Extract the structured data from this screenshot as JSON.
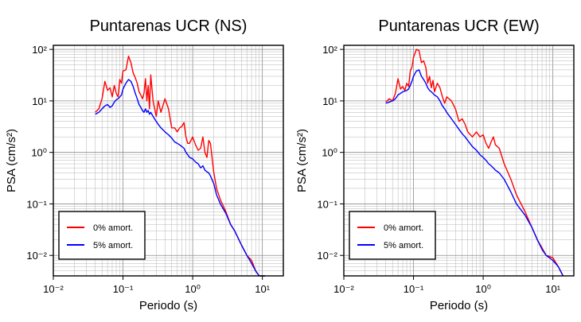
{
  "chart_data": [
    {
      "type": "line",
      "title": "Puntarenas UCR (NS)",
      "xlabel": "Periodo (s)",
      "ylabel": "PSA (cm/s²)",
      "x_scale": "log",
      "y_scale": "log",
      "xlim": [
        0.01,
        20
      ],
      "ylim": [
        0.004,
        120
      ],
      "x_tick_labels": [
        "10⁻²",
        "10⁻¹",
        "10⁰",
        "10¹"
      ],
      "y_tick_labels": [
        "10⁻²",
        "10⁻¹",
        "10⁰",
        "10¹",
        "10²"
      ],
      "grid": true,
      "legend": "bottom-left",
      "series": [
        {
          "name": "0% amort.",
          "color": "#ff0000",
          "x": [
            0.04,
            0.045,
            0.05,
            0.055,
            0.06,
            0.065,
            0.07,
            0.075,
            0.08,
            0.085,
            0.09,
            0.095,
            0.1,
            0.11,
            0.12,
            0.13,
            0.14,
            0.15,
            0.16,
            0.17,
            0.18,
            0.19,
            0.2,
            0.21,
            0.22,
            0.23,
            0.24,
            0.25,
            0.27,
            0.3,
            0.32,
            0.35,
            0.4,
            0.45,
            0.5,
            0.55,
            0.6,
            0.65,
            0.7,
            0.75,
            0.8,
            0.85,
            0.9,
            1.0,
            1.1,
            1.2,
            1.3,
            1.4,
            1.5,
            1.6,
            1.7,
            1.8,
            2.0,
            2.2,
            2.5,
            3.0,
            3.5,
            4.0,
            5.0,
            6.0,
            7.0,
            8.0,
            9.0,
            10.0,
            11.0
          ],
          "y": [
            6.0,
            7.0,
            11.0,
            24.0,
            16.0,
            18.0,
            12.0,
            20.0,
            14.0,
            12.0,
            26.0,
            22.0,
            38.0,
            40.0,
            74.0,
            55.0,
            35.0,
            28.0,
            22.0,
            15.0,
            13.0,
            11.0,
            14.0,
            27.0,
            10.0,
            20.0,
            7.0,
            32.0,
            10.0,
            5.0,
            10.0,
            6.0,
            11.0,
            7.0,
            3.0,
            3.0,
            2.5,
            3.0,
            3.2,
            3.8,
            2.0,
            1.5,
            1.5,
            2.0,
            1.4,
            1.1,
            1.2,
            2.0,
            1.0,
            0.8,
            1.7,
            1.5,
            0.42,
            0.2,
            0.12,
            0.07,
            0.04,
            0.03,
            0.016,
            0.01,
            0.008,
            0.005,
            0.004,
            0.004,
            0.004
          ]
        },
        {
          "name": "5% amort.",
          "color": "#0000ff",
          "x": [
            0.04,
            0.045,
            0.05,
            0.055,
            0.06,
            0.065,
            0.07,
            0.075,
            0.08,
            0.085,
            0.09,
            0.095,
            0.1,
            0.11,
            0.12,
            0.13,
            0.14,
            0.15,
            0.16,
            0.17,
            0.18,
            0.19,
            0.2,
            0.21,
            0.22,
            0.23,
            0.24,
            0.25,
            0.27,
            0.3,
            0.32,
            0.35,
            0.4,
            0.45,
            0.5,
            0.55,
            0.6,
            0.65,
            0.7,
            0.75,
            0.8,
            0.85,
            0.9,
            1.0,
            1.1,
            1.2,
            1.3,
            1.4,
            1.5,
            1.6,
            1.7,
            1.8,
            2.0,
            2.2,
            2.5,
            3.0,
            3.5,
            4.0,
            5.0,
            6.0,
            7.0,
            8.0,
            9.0,
            10.0,
            11.0
          ],
          "y": [
            5.5,
            6.0,
            7.0,
            8.0,
            8.5,
            7.5,
            8.0,
            9.5,
            10.5,
            11.0,
            12.0,
            13.0,
            17.0,
            22.0,
            26.0,
            24.0,
            19.0,
            14.0,
            11.0,
            8.5,
            7.5,
            6.5,
            6.0,
            7.0,
            6.0,
            6.5,
            5.5,
            6.0,
            5.0,
            4.0,
            3.5,
            3.0,
            2.5,
            2.2,
            1.9,
            1.6,
            1.5,
            1.4,
            1.3,
            1.2,
            1.0,
            0.9,
            0.8,
            0.75,
            0.65,
            0.6,
            0.5,
            0.55,
            0.45,
            0.42,
            0.4,
            0.35,
            0.25,
            0.15,
            0.1,
            0.065,
            0.04,
            0.03,
            0.016,
            0.01,
            0.007,
            0.005,
            0.004,
            0.004,
            0.004
          ]
        }
      ]
    },
    {
      "type": "line",
      "title": "Puntarenas UCR (EW)",
      "xlabel": "Periodo (s)",
      "ylabel": "PSA (cm/s²)",
      "x_scale": "log",
      "y_scale": "log",
      "xlim": [
        0.01,
        20
      ],
      "ylim": [
        0.004,
        120
      ],
      "x_tick_labels": [
        "10⁻²",
        "10⁻¹",
        "10⁰",
        "10¹"
      ],
      "y_tick_labels": [
        "10⁻²",
        "10⁻¹",
        "10⁰",
        "10¹",
        "10²"
      ],
      "grid": true,
      "legend": "bottom-left",
      "series": [
        {
          "name": "0% amort.",
          "color": "#ff0000",
          "x": [
            0.04,
            0.045,
            0.05,
            0.055,
            0.06,
            0.065,
            0.07,
            0.075,
            0.08,
            0.085,
            0.09,
            0.095,
            0.1,
            0.11,
            0.12,
            0.13,
            0.14,
            0.15,
            0.16,
            0.17,
            0.18,
            0.19,
            0.2,
            0.22,
            0.24,
            0.26,
            0.28,
            0.3,
            0.35,
            0.4,
            0.45,
            0.5,
            0.55,
            0.6,
            0.7,
            0.8,
            0.9,
            1.0,
            1.1,
            1.2,
            1.3,
            1.4,
            1.5,
            1.7,
            2.0,
            2.5,
            3.0,
            4.0,
            5.0,
            6.0,
            7.0,
            8.0,
            10.0,
            12.0,
            14.0
          ],
          "y": [
            9.5,
            11.0,
            10.0,
            14.0,
            27.0,
            17.0,
            19.0,
            16.0,
            22.0,
            19.0,
            38.0,
            45.0,
            70.0,
            100.0,
            95.0,
            55.0,
            60.0,
            45.0,
            22.0,
            30.0,
            18.0,
            25.0,
            15.0,
            22.0,
            18.0,
            12.0,
            9.0,
            12.0,
            10.0,
            7.0,
            4.0,
            4.5,
            3.5,
            2.5,
            2.0,
            2.5,
            2.0,
            2.2,
            1.5,
            1.2,
            1.6,
            2.0,
            1.4,
            1.2,
            0.6,
            0.3,
            0.15,
            0.07,
            0.035,
            0.02,
            0.014,
            0.01,
            0.009,
            0.006,
            0.004
          ]
        },
        {
          "name": "5% amort.",
          "color": "#0000ff",
          "x": [
            0.04,
            0.045,
            0.05,
            0.055,
            0.06,
            0.065,
            0.07,
            0.075,
            0.08,
            0.085,
            0.09,
            0.095,
            0.1,
            0.11,
            0.12,
            0.13,
            0.14,
            0.15,
            0.16,
            0.17,
            0.18,
            0.19,
            0.2,
            0.22,
            0.24,
            0.26,
            0.28,
            0.3,
            0.35,
            0.4,
            0.45,
            0.5,
            0.55,
            0.6,
            0.7,
            0.8,
            0.9,
            1.0,
            1.1,
            1.2,
            1.3,
            1.4,
            1.5,
            1.7,
            2.0,
            2.5,
            3.0,
            4.0,
            5.0,
            6.0,
            7.0,
            8.0,
            10.0,
            12.0,
            14.0
          ],
          "y": [
            9.0,
            9.5,
            10.0,
            11.0,
            13.0,
            14.0,
            15.0,
            15.5,
            16.0,
            17.0,
            20.0,
            24.0,
            30.0,
            38.0,
            40.0,
            30.0,
            26.0,
            22.0,
            18.0,
            16.0,
            15.0,
            14.0,
            13.0,
            12.0,
            10.0,
            8.0,
            7.0,
            6.0,
            4.5,
            3.5,
            2.8,
            2.3,
            2.0,
            1.7,
            1.3,
            1.1,
            0.9,
            0.8,
            0.7,
            0.6,
            0.55,
            0.5,
            0.45,
            0.4,
            0.3,
            0.17,
            0.1,
            0.06,
            0.035,
            0.02,
            0.013,
            0.01,
            0.008,
            0.006,
            0.004
          ]
        }
      ]
    }
  ]
}
